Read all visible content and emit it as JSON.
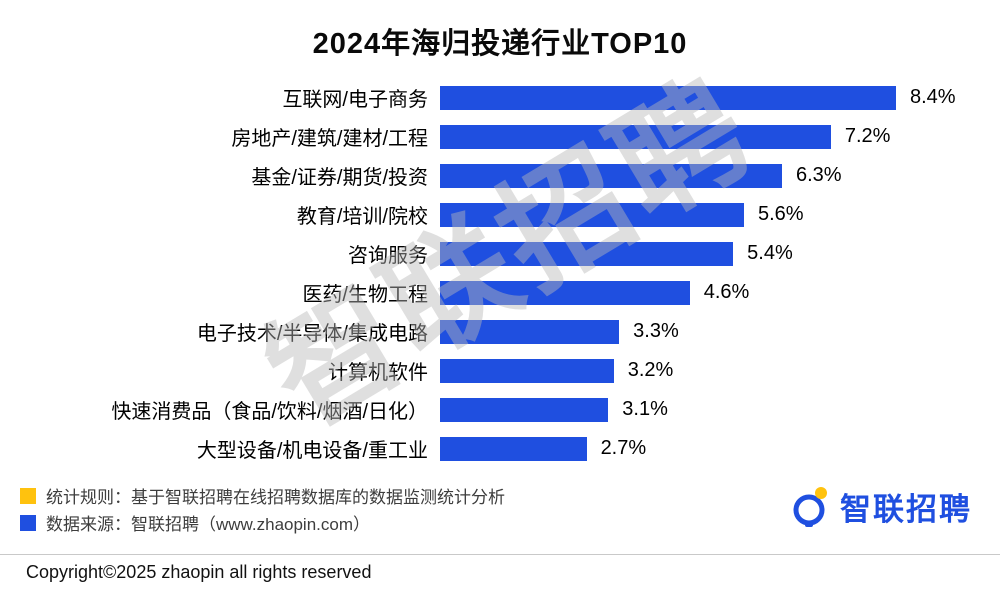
{
  "title": "2024年海归投递行业TOP10",
  "watermark": "智联招聘",
  "chart_data": {
    "type": "bar",
    "orientation": "horizontal",
    "title": "2024年海归投递行业TOP10",
    "categories": [
      "互联网/电子商务",
      "房地产/建筑/建材/工程",
      "基金/证券/期货/投资",
      "教育/培训/院校",
      "咨询服务",
      "医药/生物工程",
      "电子技术/半导体/集成电路",
      "计算机软件",
      "快速消费品（食品/饮料/烟酒/日化）",
      "大型设备/机电设备/重工业"
    ],
    "values": [
      8.4,
      7.2,
      6.3,
      5.6,
      5.4,
      4.6,
      3.3,
      3.2,
      3.1,
      2.7
    ],
    "display_values": [
      "8.4%",
      "7.2%",
      "6.3%",
      "5.6%",
      "5.4%",
      "4.6%",
      "3.3%",
      "3.2%",
      "3.1%",
      "2.7%"
    ],
    "unit": "%",
    "xlim": [
      0,
      8.4
    ],
    "bar_color": "#1F4FE0",
    "grid": false,
    "legend_position": "none"
  },
  "footer": {
    "stat_rule": "统计规则：基于智联招聘在线招聘数据库的数据监测统计分析",
    "data_source": "数据来源：智联招聘（www.zhaopin.com）",
    "copyright": "Copyright©2025 zhaopin all rights reserved",
    "logo_text": "智联招聘"
  },
  "colors": {
    "bar": "#1F4FE0",
    "legend_yellow": "#FFC20E",
    "legend_blue": "#1F4FE0",
    "logo_blue": "#1F4FE0",
    "watermark_gray": "#B9B9B9"
  }
}
